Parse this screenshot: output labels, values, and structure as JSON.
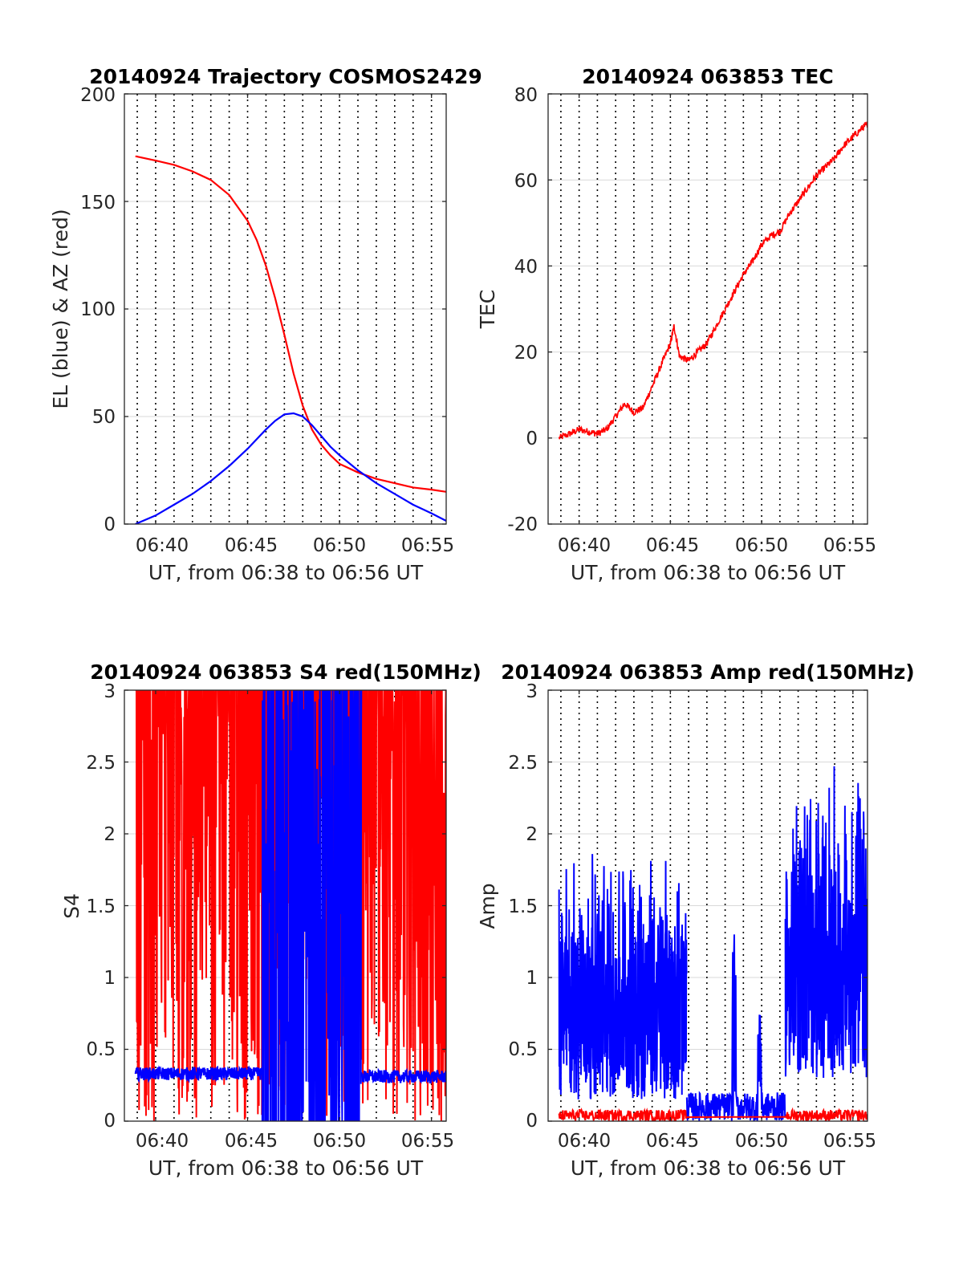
{
  "figure": {
    "background": "#ffffff"
  },
  "colors": {
    "el": "#0000ff",
    "az": "#ff0000",
    "tec": "#ff0000",
    "s4": "#ff0000",
    "s4_blue": "#0000ff",
    "amp_blue": "#0000ff",
    "amp_red": "#ff0000",
    "grid": "#d9d9d9"
  },
  "chart_data": [
    {
      "id": "trajectory",
      "type": "line",
      "title": "20140924 Trajectory COSMOS2429",
      "xlabel": "UT, from 06:38 to 06:56 UT",
      "ylabel": "EL (blue) & AZ (red)",
      "xlim": [
        38.3,
        55.8
      ],
      "ylim": [
        0,
        200
      ],
      "xticks": [
        40,
        45,
        50,
        55
      ],
      "xticklabels": [
        "06:40",
        "06:45",
        "06:50",
        "06:55"
      ],
      "yticks": [
        0,
        50,
        100,
        150,
        200
      ],
      "yticklabels": [
        "0",
        "50",
        "100",
        "150",
        "200"
      ],
      "vlines": [
        39,
        40,
        41,
        42,
        43,
        44,
        45,
        46,
        47,
        48,
        49,
        50,
        51,
        52,
        53,
        54,
        55
      ],
      "series": [
        {
          "color": "#ff0000",
          "x": [
            38.9,
            40.0,
            41.0,
            42.0,
            43.0,
            44.0,
            45.0,
            45.5,
            46.0,
            46.5,
            47.0,
            47.5,
            48.0,
            48.5,
            49.0,
            49.5,
            50.0,
            51.0,
            52.0,
            53.0,
            54.0,
            55.0,
            55.8
          ],
          "y": [
            171,
            169,
            167,
            164,
            160,
            153,
            141,
            132,
            120,
            105,
            88,
            70,
            55,
            44,
            37,
            32,
            28,
            24,
            21,
            19,
            17,
            16,
            15
          ]
        },
        {
          "color": "#0000ff",
          "x": [
            38.9,
            40.0,
            41.0,
            42.0,
            43.0,
            44.0,
            45.0,
            46.0,
            46.5,
            47.0,
            47.5,
            48.0,
            48.5,
            49.0,
            49.5,
            50.0,
            51.0,
            52.0,
            53.0,
            54.0,
            55.0,
            55.8
          ],
          "y": [
            0,
            4,
            9,
            14,
            20,
            27,
            35,
            44,
            48,
            51,
            51.5,
            50,
            46,
            41,
            36,
            32,
            25,
            19,
            14,
            9,
            5,
            1.5
          ]
        }
      ]
    },
    {
      "id": "tec",
      "type": "line",
      "title": "20140924 063853 TEC",
      "xlabel": "UT, from 06:38 to 06:56 UT",
      "ylabel": "TEC",
      "xlim": [
        38.3,
        55.8
      ],
      "ylim": [
        -20,
        80
      ],
      "xticks": [
        40,
        45,
        50,
        55
      ],
      "xticklabels": [
        "06:40",
        "06:45",
        "06:50",
        "06:55"
      ],
      "yticks": [
        -20,
        0,
        20,
        40,
        60,
        80
      ],
      "yticklabels": [
        "-20",
        "0",
        "20",
        "40",
        "60",
        "80"
      ],
      "vlines": [
        39,
        40,
        41,
        42,
        43,
        44,
        45,
        46,
        47,
        48,
        49,
        50,
        51,
        52,
        53,
        54,
        55
      ],
      "series": [
        {
          "color": "#ff0000",
          "x": [
            38.9,
            39.5,
            40.0,
            40.5,
            41.0,
            41.5,
            42.0,
            42.5,
            43.0,
            43.5,
            44.0,
            44.5,
            45.0,
            45.2,
            45.5,
            46.0,
            46.5,
            47.0,
            47.5,
            48.0,
            48.5,
            49.0,
            49.5,
            50.0,
            50.5,
            51.0,
            51.5,
            52.0,
            52.5,
            53.0,
            53.5,
            54.0,
            54.5,
            55.0,
            55.5,
            55.8
          ],
          "y": [
            0,
            1,
            2,
            1.5,
            1,
            2,
            5,
            8,
            6,
            7,
            12,
            17,
            22,
            26,
            19,
            18,
            20,
            22,
            26,
            30,
            34,
            38,
            41,
            45,
            47,
            48,
            52,
            55,
            58,
            61,
            63,
            65,
            68,
            70,
            72,
            73
          ]
        }
      ]
    },
    {
      "id": "s4",
      "type": "line",
      "title": "20140924 063853 S4 red(150MHz)",
      "xlabel": "UT, from 06:38 to 06:56 UT",
      "ylabel": "S4",
      "xlim": [
        38.3,
        55.8
      ],
      "ylim": [
        0,
        3
      ],
      "xticks": [
        40,
        45,
        50,
        55
      ],
      "xticklabels": [
        "06:40",
        "06:45",
        "06:50",
        "06:55"
      ],
      "yticks": [
        0,
        0.5,
        1,
        1.5,
        2,
        2.5,
        3
      ],
      "yticklabels": [
        "0",
        "0.5",
        "1",
        "1.5",
        "2",
        "2.5",
        "3"
      ],
      "vlines": [
        39,
        40,
        41,
        42,
        43,
        44,
        45,
        46,
        47,
        48,
        49,
        50,
        51,
        52,
        53,
        54,
        55
      ],
      "series": [
        {
          "color": "#ff0000",
          "x": [
            38.9,
            55.8
          ],
          "y": [
            3,
            0
          ],
          "note_type": "noise"
        },
        {
          "color": "#0000ff",
          "x": [
            38.9,
            45.8
          ],
          "y": [
            0.33,
            0.35
          ]
        },
        {
          "color": "#0000ff",
          "x": [
            45.8,
            51.2
          ],
          "y": [
            1.0,
            3.0
          ]
        },
        {
          "color": "#0000ff",
          "x": [
            51.2,
            55.8
          ],
          "y": [
            0.32,
            0.3
          ]
        }
      ]
    },
    {
      "id": "amp",
      "type": "line",
      "title": "20140924 063853 Amp red(150MHz)",
      "xlabel": "UT, from 06:38 to 06:56 UT",
      "ylabel": "Amp",
      "xlim": [
        38.3,
        55.8
      ],
      "ylim": [
        0,
        3
      ],
      "xticks": [
        40,
        45,
        50,
        55
      ],
      "xticklabels": [
        "06:40",
        "06:45",
        "06:50",
        "06:55"
      ],
      "yticks": [
        0,
        0.5,
        1,
        1.5,
        2,
        2.5,
        3
      ],
      "yticklabels": [
        "0",
        "0.5",
        "1",
        "1.5",
        "2",
        "2.5",
        "3"
      ],
      "vlines": [
        39,
        40,
        41,
        42,
        43,
        44,
        45,
        46,
        47,
        48,
        49,
        50,
        51,
        52,
        53,
        54,
        55
      ],
      "series": [
        {
          "color": "#0000ff",
          "x": [
            38.9,
            45.9
          ],
          "y": [
            0.2,
            1.8
          ]
        },
        {
          "color": "#0000ff",
          "x": [
            45.9,
            51.3
          ],
          "y": [
            0.0,
            0.2
          ]
        },
        {
          "color": "#0000ff",
          "x": [
            51.3,
            55.8
          ],
          "y": [
            0.4,
            2.2
          ]
        },
        {
          "color": "#ff0000",
          "x": [
            38.9,
            55.8
          ],
          "y": [
            0.0,
            0.08
          ]
        }
      ]
    }
  ]
}
